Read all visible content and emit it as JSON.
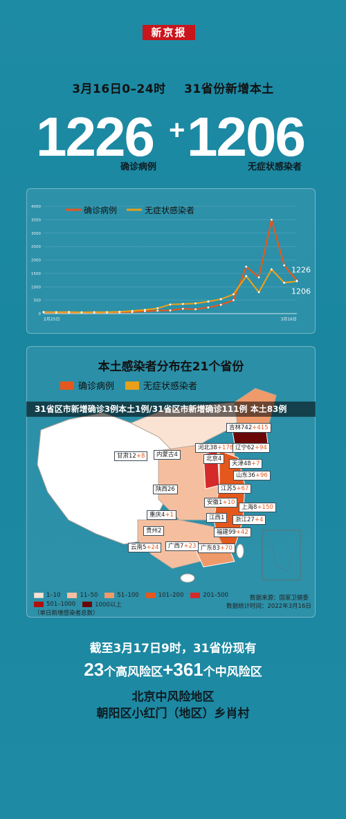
{
  "brand": "新京报",
  "header": {
    "date_range": "3月16日0–24时",
    "scope": "31省份新增本土",
    "confirmed_value": "1226",
    "plus": "+",
    "asymptomatic_value": "1206",
    "confirmed_label": "确诊病例",
    "asymptomatic_label": "无症状感染者"
  },
  "colors": {
    "background": "#1e8ba5",
    "confirmed": "#e4581d",
    "asymptomatic": "#e8a01a",
    "brand_red": "#c8161d"
  },
  "chart_data": {
    "type": "line",
    "legend": [
      "确诊病例",
      "无症状感染者"
    ],
    "legend_position": "top",
    "x_start_label": "2月25日",
    "x_end_label": "3月16日",
    "yticks": [
      0,
      500,
      1000,
      1500,
      2000,
      2500,
      3000,
      3500,
      4000
    ],
    "ylim": [
      0,
      4000
    ],
    "series": [
      {
        "name": "确诊病例",
        "color": "#e4581d",
        "values": [
          50,
          40,
          40,
          45,
          40,
          40,
          50,
          60,
          90,
          110,
          120,
          180,
          160,
          230,
          330,
          500,
          1750,
          1350,
          3500,
          1800,
          1226
        ]
      },
      {
        "name": "无症状感染者",
        "color": "#e8a01a",
        "values": [
          60,
          55,
          60,
          50,
          55,
          55,
          70,
          100,
          140,
          200,
          340,
          360,
          380,
          450,
          540,
          720,
          1400,
          800,
          1650,
          1150,
          1206
        ]
      }
    ],
    "end_labels": [
      "1226",
      "1206"
    ]
  },
  "map": {
    "title": "本土感染者分布在21个省份",
    "legend": [
      {
        "label": "确诊病例",
        "color": "#e4581d"
      },
      {
        "label": "无症状感染者",
        "color": "#e8a01a"
      }
    ],
    "banner": "31省区市新增确诊3例本土1例/31省区市新增确诊111例 本土83例",
    "provinces": [
      {
        "name": "吉林",
        "confirmed": "742",
        "asymptomatic": "+415"
      },
      {
        "name": "河北",
        "confirmed": "38",
        "asymptomatic": "+178"
      },
      {
        "name": "辽宁",
        "confirmed": "62",
        "asymptomatic": "+94"
      },
      {
        "name": "甘肃",
        "confirmed": "12",
        "asymptomatic": "+8"
      },
      {
        "name": "内蒙古",
        "confirmed": "4",
        "asymptomatic": ""
      },
      {
        "name": "北京",
        "confirmed": "4",
        "asymptomatic": ""
      },
      {
        "name": "天津",
        "confirmed": "48",
        "asymptomatic": "+7"
      },
      {
        "name": "山东",
        "confirmed": "36",
        "asymptomatic": "+96"
      },
      {
        "name": "陕西",
        "confirmed": "26",
        "asymptomatic": ""
      },
      {
        "name": "江苏",
        "confirmed": "5",
        "asymptomatic": "+67"
      },
      {
        "name": "安徽",
        "confirmed": "1",
        "asymptomatic": "+10"
      },
      {
        "name": "上海",
        "confirmed": "8",
        "asymptomatic": "+150"
      },
      {
        "name": "重庆",
        "confirmed": "4",
        "asymptomatic": "+1"
      },
      {
        "name": "江西",
        "confirmed": "1",
        "asymptomatic": ""
      },
      {
        "name": "浙江",
        "confirmed": "27",
        "asymptomatic": "+4"
      },
      {
        "name": "贵州",
        "confirmed": "2",
        "asymptomatic": ""
      },
      {
        "name": "福建",
        "confirmed": "99",
        "asymptomatic": "+42"
      },
      {
        "name": "云南",
        "confirmed": "5",
        "asymptomatic": "+24"
      },
      {
        "name": "广西",
        "confirmed": "7",
        "asymptomatic": "+23"
      },
      {
        "name": "广东",
        "confirmed": "83",
        "asymptomatic": "+70"
      }
    ],
    "scale": [
      {
        "label": "1–10",
        "color": "#fbe3d4"
      },
      {
        "label": "11–50",
        "color": "#f5bf9f"
      },
      {
        "label": "51–100",
        "color": "#ef9a6a"
      },
      {
        "label": "101–200",
        "color": "#e4581d"
      },
      {
        "label": "201–500",
        "color": "#d42a2a"
      },
      {
        "label": "501–1000",
        "color": "#b01010"
      },
      {
        "label": "1000以上",
        "color": "#6a0808"
      }
    ],
    "scale_note": "（单日新增感染者总数）",
    "source": "数据来源：国家卫健委",
    "stat_time": "数据统计时间：2022年3月16日"
  },
  "footer": {
    "line1": "截至3月17日9时，31省份现有",
    "high_count": "23",
    "high_label": "个高风险区",
    "plus": "+",
    "mid_count": "361",
    "mid_label": "个中风险区",
    "beijing_title": "北京中风险地区",
    "beijing_area": "朝阳区小红门（地区）乡肖村"
  }
}
